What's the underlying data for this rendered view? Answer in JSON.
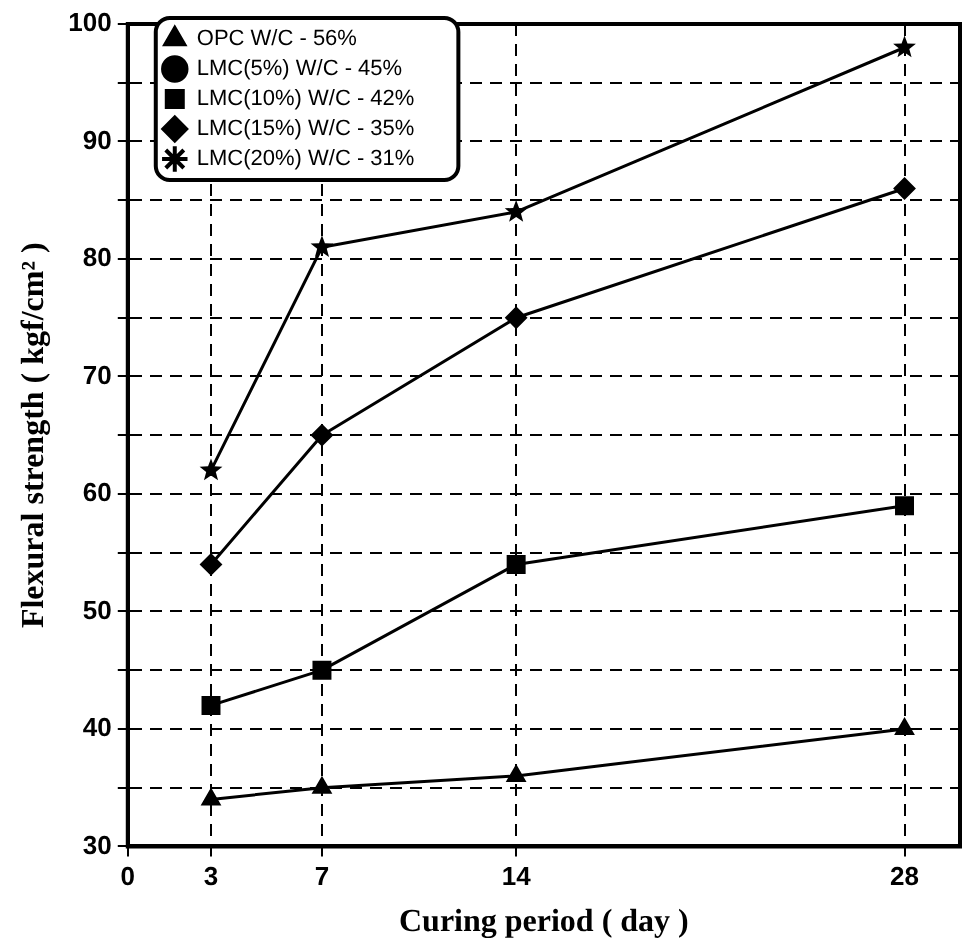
{
  "chart_data": {
    "type": "line",
    "xlabel": "Curing period ( day )",
    "ylabel": "Flexural strength ( kgf/cm² )",
    "x": [
      3,
      7,
      14,
      28
    ],
    "series": [
      {
        "name": "OPC W/C - 56%",
        "color": "#000000",
        "marker": "triangle",
        "values": [
          34,
          35,
          36,
          40
        ]
      },
      {
        "name": "LMC(5%) W/C - 45%",
        "color": "#000000",
        "marker": "circle",
        "values": [
          null,
          null,
          null,
          null
        ]
      },
      {
        "name": "LMC(10%) W/C - 42%",
        "color": "#000000",
        "marker": "square",
        "values": [
          42,
          45,
          54,
          59
        ]
      },
      {
        "name": "LMC(15%) W/C - 35%",
        "color": "#000000",
        "marker": "diamond",
        "values": [
          54,
          65,
          75,
          86
        ]
      },
      {
        "name": "LMC(20%) W/C - 31%",
        "color": "#000000",
        "marker": "star",
        "values": [
          62,
          81,
          84,
          98
        ]
      }
    ],
    "xlim": [
      0,
      30
    ],
    "xticks": [
      0,
      3,
      7,
      14,
      28
    ],
    "ylim": [
      30,
      100
    ],
    "yticks": [
      30,
      {
        "value": 35,
        "label": null
      },
      40,
      {
        "value": 45,
        "label": null
      },
      50,
      {
        "value": 55,
        "label": null
      },
      60,
      {
        "value": 65,
        "label": null
      },
      70,
      {
        "value": 75,
        "label": null
      },
      80,
      {
        "value": 85,
        "label": null
      },
      90,
      {
        "value": 95,
        "label": null
      },
      100
    ],
    "grid": true,
    "legend": "top left",
    "line_style": "solid"
  }
}
